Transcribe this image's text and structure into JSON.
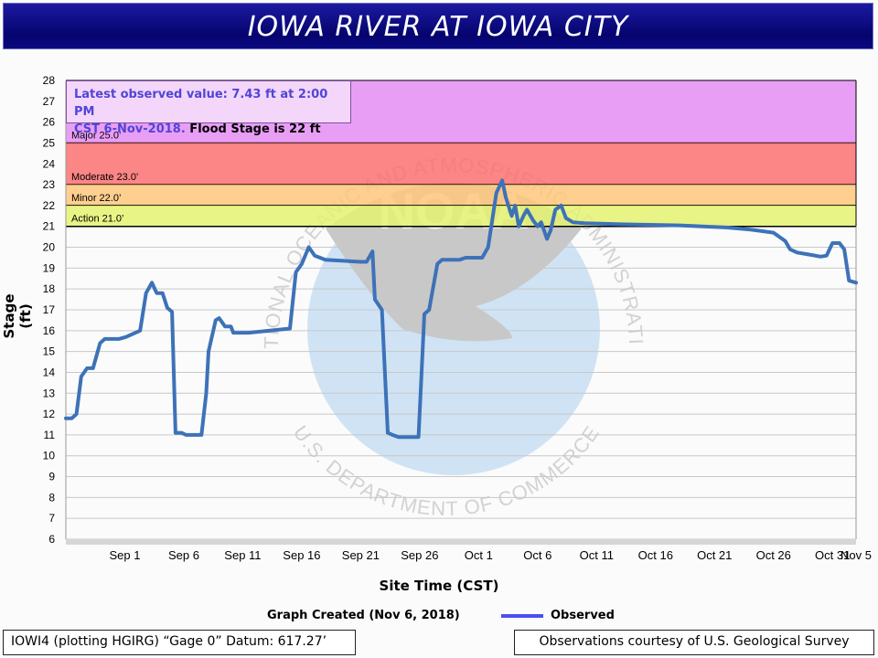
{
  "header": {
    "title": "IOWA RIVER AT IOWA CITY"
  },
  "info_box": {
    "line1": "Latest observed value: 7.43 ft at 2:00 PM",
    "line2_blue": "CST 6-Nov-2018.",
    "line2_black": " Flood Stage is 22 ft"
  },
  "watermark": {
    "logo_text": "NOAA",
    "text_top": "NATIONAL OCEANIC AND ATMOSPHERIC ADMINISTRATION",
    "text_bottom": "U.S. DEPARTMENT OF COMMERCE"
  },
  "colors": {
    "major": "#e58df4",
    "moderate": "#fb7070",
    "minor": "#fec77a",
    "action": "#e4f270",
    "line": "#3d72b8",
    "legend": "#4a4ff0"
  },
  "footer": {
    "created": "Graph Created (Nov 6, 2018)",
    "legend_label": "Observed",
    "datum": "IOWI4 (plotting HGIRG) “Gage 0” Datum: 617.27’",
    "courtesy": "Observations courtesy of U.S. Geological Survey"
  },
  "chart_data": {
    "type": "line",
    "title": "IOWA RIVER AT IOWA CITY",
    "xlabel": "Site Time (CST)",
    "ylabel": "Stage (ft)",
    "ylim": [
      6,
      28
    ],
    "xlim": [
      0,
      67
    ],
    "x_unit": "days since Aug 27, 2018",
    "x_ticks": [
      {
        "x": 5,
        "label": "Sep 1"
      },
      {
        "x": 10,
        "label": "Sep 6"
      },
      {
        "x": 15,
        "label": "Sep 11"
      },
      {
        "x": 20,
        "label": "Sep 16"
      },
      {
        "x": 25,
        "label": "Sep 21"
      },
      {
        "x": 30,
        "label": "Sep 26"
      },
      {
        "x": 35,
        "label": "Oct 1"
      },
      {
        "x": 40,
        "label": "Oct 6"
      },
      {
        "x": 45,
        "label": "Oct 11"
      },
      {
        "x": 50,
        "label": "Oct 16"
      },
      {
        "x": 55,
        "label": "Oct 21"
      },
      {
        "x": 60,
        "label": "Oct 26"
      },
      {
        "x": 65,
        "label": "Oct 31"
      },
      {
        "x": 70,
        "label": "Nov 5"
      }
    ],
    "y_ticks": [
      6,
      7,
      8,
      9,
      10,
      11,
      12,
      13,
      14,
      15,
      16,
      17,
      18,
      19,
      20,
      21,
      22,
      23,
      24,
      25,
      26,
      27,
      28
    ],
    "flood_categories": [
      {
        "name": "Major",
        "label": "Major 25.0’",
        "from": 25,
        "to": 28,
        "color_key": "major"
      },
      {
        "name": "Moderate",
        "label": "Moderate 23.0’",
        "from": 23,
        "to": 25,
        "color_key": "moderate"
      },
      {
        "name": "Minor",
        "label": "Minor 22.0’",
        "from": 22,
        "to": 23,
        "color_key": "minor"
      },
      {
        "name": "Action",
        "label": "Action 21.0’",
        "from": 21,
        "to": 22,
        "color_key": "action"
      }
    ],
    "series": [
      {
        "name": "Observed",
        "x": [
          0,
          0.5,
          0.9,
          1.3,
          1.8,
          2.3,
          2.9,
          3.3,
          4.5,
          5.1,
          6.3,
          6.8,
          7.3,
          7.7,
          8.2,
          8.6,
          9.0,
          9.3,
          9.8,
          10.2,
          11.5,
          11.9,
          12.1,
          12.7,
          13.0,
          13.5,
          14.0,
          14.2,
          15.5,
          19.0,
          19.5,
          20.0,
          20.6,
          21.1,
          22.0,
          25.0,
          25.5,
          26.0,
          26.2,
          26.8,
          27.3,
          27.7,
          28.2,
          29.0,
          29.9,
          30.4,
          30.8,
          31.5,
          31.9,
          32.4,
          33.4,
          33.9,
          34.4,
          35.3,
          35.8,
          36.5,
          37.0,
          37.3,
          37.8,
          38.1,
          38.4,
          38.8,
          39.1,
          39.6,
          40.0,
          40.3,
          40.8,
          41.1,
          41.5,
          42.0,
          42.4,
          43.0,
          44.0,
          47.0,
          52.0,
          56.0,
          58.0,
          60.0,
          61.0,
          61.4,
          62.0,
          63.0,
          64.0,
          64.5,
          65.0,
          65.6,
          66.0,
          66.4,
          67.0
        ]
      }
    ]
  }
}
